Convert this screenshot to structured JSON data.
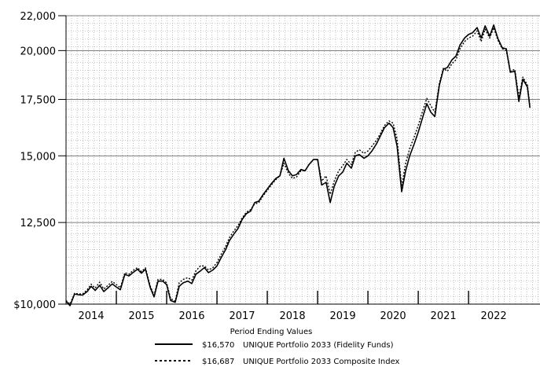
{
  "chart_data": {
    "type": "line",
    "title": "",
    "xlabel": "Period Ending Values",
    "ylabel": "",
    "yscale": "log",
    "ylim": [
      10000,
      22000
    ],
    "xlim": [
      2013.5,
      2022.92
    ],
    "grid": true,
    "y_ticks": [
      10000,
      12500,
      15000,
      17500,
      20000,
      22000
    ],
    "y_tick_labels": [
      "$10,000",
      "12,500",
      "15,000",
      "17,500",
      "20,000",
      "22,000"
    ],
    "year_labels": [
      "2014",
      "2015",
      "2016",
      "2017",
      "2018",
      "2019",
      "2020",
      "2021",
      "2022"
    ],
    "year_positions": [
      2014,
      2015,
      2016,
      2017,
      2018,
      2019,
      2020,
      2021,
      2022
    ],
    "year_ticks": [
      2014.5,
      2015.5,
      2016.5,
      2017.5,
      2018.5,
      2019.5,
      2020.5,
      2021.5
    ],
    "legend_position": "bottom",
    "series": [
      {
        "name": "UNIQUE Portfolio 2033 (Fidelity Funds)",
        "value_label": "$16,570",
        "style": "solid",
        "points": [
          [
            2013.5,
            10080
          ],
          [
            2013.58,
            9960
          ],
          [
            2013.67,
            10280
          ],
          [
            2013.75,
            10260
          ],
          [
            2013.83,
            10250
          ],
          [
            2013.92,
            10350
          ],
          [
            2014.0,
            10500
          ],
          [
            2014.08,
            10380
          ],
          [
            2014.17,
            10530
          ],
          [
            2014.25,
            10350
          ],
          [
            2014.33,
            10450
          ],
          [
            2014.42,
            10570
          ],
          [
            2014.5,
            10480
          ],
          [
            2014.58,
            10400
          ],
          [
            2014.67,
            10850
          ],
          [
            2014.75,
            10800
          ],
          [
            2014.83,
            10900
          ],
          [
            2014.92,
            11000
          ],
          [
            2015.0,
            10880
          ],
          [
            2015.08,
            11000
          ],
          [
            2015.17,
            10480
          ],
          [
            2015.25,
            10200
          ],
          [
            2015.33,
            10650
          ],
          [
            2015.42,
            10650
          ],
          [
            2015.5,
            10550
          ],
          [
            2015.58,
            10100
          ],
          [
            2015.67,
            10050
          ],
          [
            2015.75,
            10500
          ],
          [
            2015.83,
            10600
          ],
          [
            2015.92,
            10650
          ],
          [
            2016.0,
            10580
          ],
          [
            2016.08,
            10850
          ],
          [
            2016.17,
            10950
          ],
          [
            2016.25,
            11050
          ],
          [
            2016.33,
            10900
          ],
          [
            2016.42,
            10980
          ],
          [
            2016.5,
            11100
          ],
          [
            2016.58,
            11350
          ],
          [
            2016.67,
            11600
          ],
          [
            2016.75,
            11900
          ],
          [
            2016.83,
            12100
          ],
          [
            2016.92,
            12300
          ],
          [
            2017.0,
            12600
          ],
          [
            2017.08,
            12800
          ],
          [
            2017.17,
            12900
          ],
          [
            2017.25,
            13200
          ],
          [
            2017.33,
            13250
          ],
          [
            2017.42,
            13500
          ],
          [
            2017.5,
            13700
          ],
          [
            2017.58,
            13900
          ],
          [
            2017.67,
            14100
          ],
          [
            2017.75,
            14200
          ],
          [
            2017.83,
            14900
          ],
          [
            2017.92,
            14400
          ],
          [
            2018.0,
            14200
          ],
          [
            2018.08,
            14250
          ],
          [
            2018.17,
            14450
          ],
          [
            2018.25,
            14400
          ],
          [
            2018.33,
            14650
          ],
          [
            2018.42,
            14850
          ],
          [
            2018.5,
            14850
          ],
          [
            2018.58,
            13850
          ],
          [
            2018.67,
            13950
          ],
          [
            2018.75,
            13200
          ],
          [
            2018.83,
            13800
          ],
          [
            2018.92,
            14200
          ],
          [
            2019.0,
            14350
          ],
          [
            2019.08,
            14700
          ],
          [
            2019.17,
            14500
          ],
          [
            2019.25,
            15000
          ],
          [
            2019.33,
            15050
          ],
          [
            2019.42,
            14900
          ],
          [
            2019.5,
            15000
          ],
          [
            2019.58,
            15200
          ],
          [
            2019.67,
            15500
          ],
          [
            2019.75,
            15850
          ],
          [
            2019.83,
            16200
          ],
          [
            2019.92,
            16400
          ],
          [
            2020.0,
            16200
          ],
          [
            2020.08,
            15400
          ],
          [
            2020.17,
            13600
          ],
          [
            2020.25,
            14400
          ],
          [
            2020.33,
            15000
          ],
          [
            2020.42,
            15500
          ],
          [
            2020.5,
            16000
          ],
          [
            2020.58,
            16600
          ],
          [
            2020.67,
            17300
          ],
          [
            2020.75,
            16900
          ],
          [
            2020.83,
            16700
          ],
          [
            2020.92,
            18200
          ],
          [
            2021.0,
            19000
          ],
          [
            2021.08,
            19100
          ],
          [
            2021.17,
            19500
          ],
          [
            2021.25,
            19700
          ],
          [
            2021.33,
            20300
          ],
          [
            2021.42,
            20700
          ],
          [
            2021.5,
            20900
          ],
          [
            2021.58,
            21000
          ],
          [
            2021.67,
            21300
          ],
          [
            2021.75,
            20700
          ],
          [
            2021.83,
            21400
          ],
          [
            2021.92,
            20800
          ],
          [
            2022.0,
            21450
          ],
          [
            2022.08,
            20700
          ],
          [
            2022.17,
            20150
          ],
          [
            2022.25,
            20100
          ],
          [
            2022.33,
            18850
          ],
          [
            2022.42,
            18900
          ],
          [
            2022.5,
            17400
          ],
          [
            2022.58,
            18500
          ],
          [
            2022.67,
            18100
          ],
          [
            2022.72,
            17100
          ]
        ]
      },
      {
        "name": "UNIQUE Portfolio 2033 Composite Index",
        "value_label": "$16,687",
        "style": "dotted",
        "points": [
          [
            2013.5,
            10100
          ],
          [
            2013.58,
            10000
          ],
          [
            2013.67,
            10300
          ],
          [
            2013.75,
            10280
          ],
          [
            2013.83,
            10280
          ],
          [
            2013.92,
            10400
          ],
          [
            2014.0,
            10560
          ],
          [
            2014.08,
            10450
          ],
          [
            2014.17,
            10620
          ],
          [
            2014.25,
            10420
          ],
          [
            2014.33,
            10520
          ],
          [
            2014.42,
            10640
          ],
          [
            2014.5,
            10550
          ],
          [
            2014.58,
            10460
          ],
          [
            2014.67,
            10900
          ],
          [
            2014.75,
            10850
          ],
          [
            2014.83,
            10960
          ],
          [
            2014.92,
            11050
          ],
          [
            2015.0,
            10930
          ],
          [
            2015.08,
            11040
          ],
          [
            2015.17,
            10520
          ],
          [
            2015.25,
            10250
          ],
          [
            2015.33,
            10700
          ],
          [
            2015.42,
            10700
          ],
          [
            2015.5,
            10600
          ],
          [
            2015.58,
            10150
          ],
          [
            2015.67,
            10080
          ],
          [
            2015.75,
            10600
          ],
          [
            2015.83,
            10700
          ],
          [
            2015.92,
            10750
          ],
          [
            2016.0,
            10680
          ],
          [
            2016.08,
            10950
          ],
          [
            2016.17,
            11100
          ],
          [
            2016.25,
            11100
          ],
          [
            2016.33,
            10980
          ],
          [
            2016.42,
            11050
          ],
          [
            2016.5,
            11200
          ],
          [
            2016.58,
            11450
          ],
          [
            2016.67,
            11700
          ],
          [
            2016.75,
            12000
          ],
          [
            2016.83,
            12200
          ],
          [
            2016.92,
            12400
          ],
          [
            2017.0,
            12650
          ],
          [
            2017.08,
            12850
          ],
          [
            2017.17,
            12950
          ],
          [
            2017.25,
            13150
          ],
          [
            2017.33,
            13200
          ],
          [
            2017.42,
            13450
          ],
          [
            2017.5,
            13650
          ],
          [
            2017.58,
            13850
          ],
          [
            2017.67,
            14050
          ],
          [
            2017.75,
            14200
          ],
          [
            2017.83,
            14700
          ],
          [
            2017.92,
            14300
          ],
          [
            2018.0,
            14100
          ],
          [
            2018.08,
            14150
          ],
          [
            2018.17,
            14400
          ],
          [
            2018.25,
            14400
          ],
          [
            2018.33,
            14650
          ],
          [
            2018.42,
            14850
          ],
          [
            2018.5,
            14850
          ],
          [
            2018.58,
            14000
          ],
          [
            2018.67,
            14200
          ],
          [
            2018.75,
            13500
          ],
          [
            2018.83,
            14000
          ],
          [
            2018.92,
            14400
          ],
          [
            2019.0,
            14600
          ],
          [
            2019.08,
            14850
          ],
          [
            2019.17,
            14650
          ],
          [
            2019.25,
            15150
          ],
          [
            2019.33,
            15250
          ],
          [
            2019.42,
            15100
          ],
          [
            2019.5,
            15200
          ],
          [
            2019.58,
            15400
          ],
          [
            2019.67,
            15650
          ],
          [
            2019.75,
            15950
          ],
          [
            2019.83,
            16300
          ],
          [
            2019.92,
            16500
          ],
          [
            2020.0,
            16400
          ],
          [
            2020.08,
            15700
          ],
          [
            2020.17,
            13800
          ],
          [
            2020.25,
            14700
          ],
          [
            2020.33,
            15300
          ],
          [
            2020.42,
            15800
          ],
          [
            2020.5,
            16300
          ],
          [
            2020.58,
            16900
          ],
          [
            2020.67,
            17550
          ],
          [
            2020.75,
            17200
          ],
          [
            2020.83,
            16900
          ],
          [
            2020.92,
            18300
          ],
          [
            2021.0,
            19050
          ],
          [
            2021.08,
            18900
          ],
          [
            2021.17,
            19300
          ],
          [
            2021.25,
            19500
          ],
          [
            2021.33,
            20100
          ],
          [
            2021.42,
            20500
          ],
          [
            2021.5,
            20700
          ],
          [
            2021.58,
            20800
          ],
          [
            2021.67,
            21100
          ],
          [
            2021.75,
            20500
          ],
          [
            2021.83,
            21200
          ],
          [
            2021.92,
            20700
          ],
          [
            2022.0,
            21300
          ],
          [
            2022.08,
            20600
          ],
          [
            2022.17,
            20100
          ],
          [
            2022.25,
            20000
          ],
          [
            2022.33,
            18900
          ],
          [
            2022.42,
            19000
          ],
          [
            2022.5,
            17600
          ],
          [
            2022.58,
            18600
          ],
          [
            2022.67,
            18200
          ],
          [
            2022.72,
            17200
          ]
        ]
      }
    ]
  }
}
